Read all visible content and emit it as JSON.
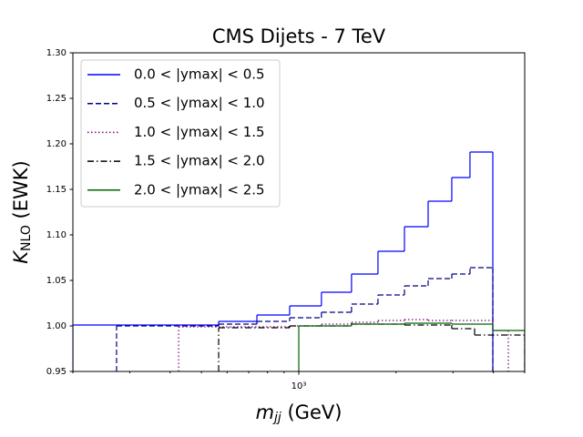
{
  "chart_data": {
    "type": "step",
    "title": "CMS Dijets - 7 TeV",
    "xlabel": {
      "main": "m",
      "sub": "jj",
      "rest": " (GeV)"
    },
    "ylabel": {
      "main": "K",
      "sub": "NLO",
      "rest": " (EWK)"
    },
    "xscale": "log",
    "xlim": [
      200,
      5000
    ],
    "xticks": [
      {
        "value": 1000,
        "label": "10³"
      }
    ],
    "xminorticks": [
      200,
      300,
      400,
      500,
      600,
      700,
      800,
      900,
      2000,
      3000,
      4000,
      5000
    ],
    "ylim": [
      0.95,
      1.3
    ],
    "yticks": [
      0.95,
      {
        "value": 1,
        "label": "1.00"
      },
      1.05,
      {
        "value": 1.1,
        "label": "1.10"
      },
      1.15,
      {
        "value": 1.2,
        "label": "1.20"
      },
      1.25,
      {
        "value": 1.3,
        "label": "1.30"
      }
    ],
    "grid": false,
    "legend": "upper left",
    "series": [
      {
        "name": "0.0 < |ymax| < 0.5",
        "color": "#0000ff",
        "linestyle": "solid",
        "bins": [
          200,
          565,
          742,
          937,
          1175,
          1456,
          1758,
          2123,
          2513,
          2974,
          3386,
          3984
        ],
        "values": [
          1.001,
          1.005,
          1.012,
          1.022,
          1.037,
          1.057,
          1.082,
          1.109,
          1.137,
          1.163,
          1.191
        ]
      },
      {
        "name": "0.5 < |ymax| < 1.0",
        "color": "#000080",
        "linestyle": "dashed",
        "bins": [
          273,
          565,
          742,
          937,
          1175,
          1456,
          1758,
          2123,
          2513,
          2974,
          3386,
          3984
        ],
        "values": [
          1.0,
          1.002,
          1.005,
          1.009,
          1.015,
          1.024,
          1.034,
          1.044,
          1.052,
          1.057,
          1.064
        ]
      },
      {
        "name": "1.0 < |ymax| < 1.5",
        "color": "#800080",
        "linestyle": "dotted",
        "bins": [
          425,
          937,
          1175,
          1456,
          1758,
          2123,
          2513,
          2974,
          3984,
          4450
        ],
        "values": [
          0.999,
          1.0,
          1.002,
          1.004,
          1.006,
          1.007,
          1.006,
          1.006,
          0.995
        ]
      },
      {
        "name": "1.5 < |ymax| < 2.0",
        "color": "#000000",
        "linestyle": "dashdot",
        "bins": [
          565,
          937,
          1456,
          2123,
          2974,
          3500,
          5000
        ],
        "values": [
          0.998,
          1.0,
          1.002,
          1.001,
          0.997,
          0.99
        ]
      },
      {
        "name": "2.0 < |ymax| < 2.5",
        "color": "#006400",
        "linestyle": "solid",
        "bins": [
          1000,
          1456,
          2123,
          2974,
          3984,
          5000
        ],
        "values": [
          1.0,
          1.002,
          1.003,
          1.002,
          0.995
        ]
      }
    ]
  }
}
